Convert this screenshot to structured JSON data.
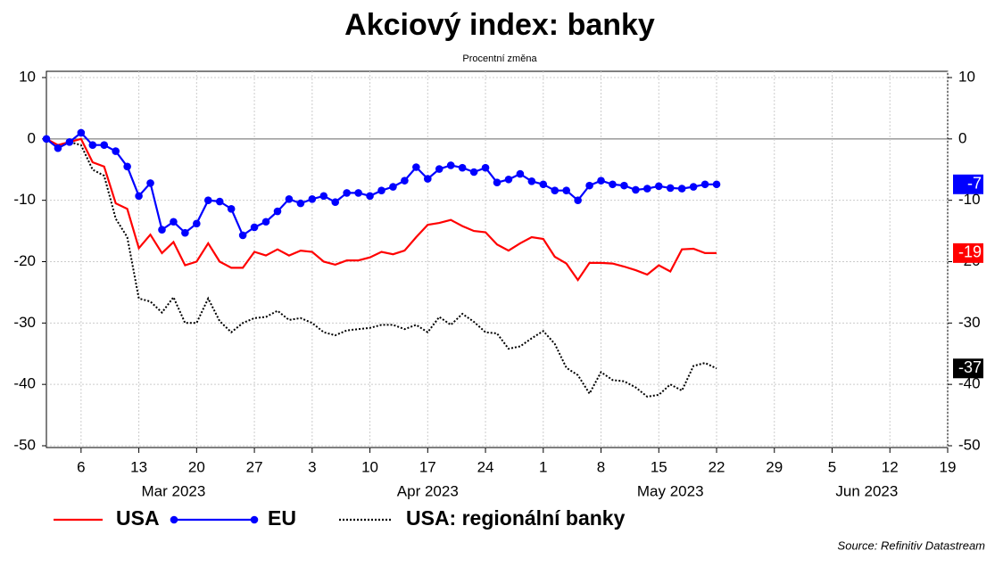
{
  "chart_data": {
    "type": "line",
    "title": "Akciový index: banky",
    "subtitle": "Procentní změna",
    "source": "Source: Refinitiv Datastream",
    "x": [
      "2023-03-01",
      "2023-03-02",
      "2023-03-03",
      "2023-03-06",
      "2023-03-07",
      "2023-03-08",
      "2023-03-09",
      "2023-03-10",
      "2023-03-13",
      "2023-03-14",
      "2023-03-15",
      "2023-03-16",
      "2023-03-17",
      "2023-03-20",
      "2023-03-21",
      "2023-03-22",
      "2023-03-23",
      "2023-03-24",
      "2023-03-27",
      "2023-03-28",
      "2023-03-29",
      "2023-03-30",
      "2023-03-31",
      "2023-04-03",
      "2023-04-04",
      "2023-04-05",
      "2023-04-06",
      "2023-04-07",
      "2023-04-10",
      "2023-04-11",
      "2023-04-12",
      "2023-04-13",
      "2023-04-14",
      "2023-04-17",
      "2023-04-18",
      "2023-04-19",
      "2023-04-20",
      "2023-04-21",
      "2023-04-24",
      "2023-04-25",
      "2023-04-26",
      "2023-04-27",
      "2023-04-28",
      "2023-05-01",
      "2023-05-02",
      "2023-05-03",
      "2023-05-04",
      "2023-05-05",
      "2023-05-08",
      "2023-05-09",
      "2023-05-10",
      "2023-05-11",
      "2023-05-12",
      "2023-05-15",
      "2023-05-16",
      "2023-05-17",
      "2023-05-18",
      "2023-05-19",
      "2023-05-22"
    ],
    "series": [
      {
        "name": "USA",
        "color": "#ff0000",
        "end_label": "-19",
        "values": [
          0,
          -1,
          -0.5,
          0,
          -3.8,
          -4.5,
          -10.5,
          -11.4,
          -17.8,
          -15.6,
          -18.6,
          -16.8,
          -20.6,
          -20,
          -17,
          -20,
          -21,
          -21,
          -18.4,
          -19,
          -18,
          -19,
          -18.2,
          -18.4,
          -20,
          -20.5,
          -19.8,
          -19.8,
          -19.3,
          -18.4,
          -18.8,
          -18.2,
          -16,
          -14,
          -13.7,
          -13.2,
          -14.2,
          -15,
          -15.2,
          -17.2,
          -18.2,
          -17,
          -16,
          -16.3,
          -19.2,
          -20.3,
          -23,
          -20.2,
          -20.2,
          -20.3,
          -20.8,
          -21.4,
          -22.1,
          -20.6,
          -21.6,
          -18,
          -17.9,
          -18.6,
          -18.6
        ]
      },
      {
        "name": "EU",
        "color": "#0000ff",
        "marker": true,
        "end_label": "-7",
        "values": [
          0,
          -1.5,
          -0.5,
          1,
          -1,
          -1,
          -2,
          -4.5,
          -9.3,
          -7.2,
          -14.8,
          -13.5,
          -15.3,
          -13.8,
          -10,
          -10.2,
          -11.4,
          -15.7,
          -14.4,
          -13.5,
          -11.8,
          -9.8,
          -10.5,
          -9.8,
          -9.3,
          -10.3,
          -8.8,
          -8.8,
          -9.3,
          -8.4,
          -7.8,
          -6.8,
          -4.6,
          -6.5,
          -4.9,
          -4.3,
          -4.7,
          -5.4,
          -4.7,
          -7.1,
          -6.6,
          -5.7,
          -6.9,
          -7.4,
          -8.4,
          -8.4,
          -10,
          -7.6,
          -6.8,
          -7.4,
          -7.6,
          -8.3,
          -8.1,
          -7.7,
          -8,
          -8.1,
          -7.8,
          -7.4,
          -7.4
        ]
      },
      {
        "name": "USA: regionální banky",
        "color": "#000000",
        "dash": true,
        "end_label": "-37",
        "values": [
          0,
          -1.5,
          -0.5,
          -1,
          -5,
          -6,
          -13,
          -16,
          -26,
          -26.5,
          -28.3,
          -25.8,
          -30,
          -30,
          -26,
          -29.7,
          -31.5,
          -30,
          -29.2,
          -29,
          -28,
          -29.5,
          -29.2,
          -30,
          -31.5,
          -32,
          -31.2,
          -31,
          -30.8,
          -30.3,
          -30.3,
          -31,
          -30.3,
          -31.5,
          -29,
          -30.3,
          -28.5,
          -29.8,
          -31.5,
          -31.7,
          -34.2,
          -33.8,
          -32.5,
          -31.3,
          -33.4,
          -37.3,
          -38.5,
          -41.5,
          -38,
          -39.3,
          -39.5,
          -40.5,
          -42,
          -41.7,
          -40,
          -41,
          -37,
          -36.5,
          -37.4
        ]
      }
    ],
    "xlim": [
      "2023-03-01",
      "2023-06-19"
    ],
    "xticks": [
      {
        "value": "2023-03-06",
        "label": "6"
      },
      {
        "value": "2023-03-13",
        "label": "13"
      },
      {
        "value": "2023-03-20",
        "label": "20"
      },
      {
        "value": "2023-03-27",
        "label": "27"
      },
      {
        "value": "2023-04-03",
        "label": "3"
      },
      {
        "value": "2023-04-10",
        "label": "10"
      },
      {
        "value": "2023-04-17",
        "label": "17"
      },
      {
        "value": "2023-04-24",
        "label": "24"
      },
      {
        "value": "2023-05-01",
        "label": "1"
      },
      {
        "value": "2023-05-08",
        "label": "8"
      },
      {
        "value": "2023-05-15",
        "label": "15"
      },
      {
        "value": "2023-05-22",
        "label": "22"
      },
      {
        "value": "2023-05-29",
        "label": "29"
      },
      {
        "value": "2023-06-05",
        "label": "5"
      },
      {
        "value": "2023-06-12",
        "label": "12"
      },
      {
        "value": "2023-06-19",
        "label": "19"
      }
    ],
    "month_labels": [
      {
        "value": "2023-03-16",
        "label": "Mar 2023"
      },
      {
        "value": "2023-04-17",
        "label": "Apr 2023"
      },
      {
        "value": "2023-05-16",
        "label": "May 2023"
      },
      {
        "value": "2023-06-08",
        "label": "Jun 2023"
      }
    ],
    "ylim": [
      -50,
      10
    ],
    "yticks": [
      10,
      0,
      -10,
      -20,
      -30,
      -40,
      -50
    ],
    "grid": true
  }
}
